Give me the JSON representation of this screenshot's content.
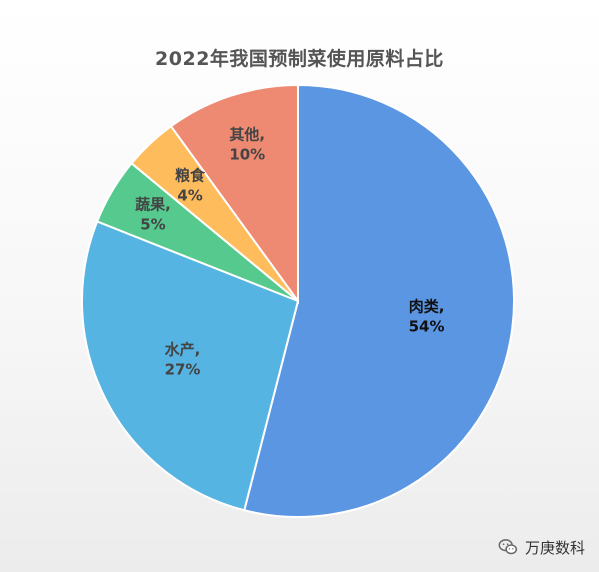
{
  "chart_data": {
    "type": "pie",
    "title": "2022年我国预制菜使用原料占比",
    "categories": [
      "肉类",
      "水产",
      "蔬果",
      "粮食",
      "其他"
    ],
    "values": [
      54,
      27,
      5,
      4,
      10
    ],
    "labels": [
      {
        "name": "肉类,",
        "pct": "54%"
      },
      {
        "name": "水产,",
        "pct": "27%"
      },
      {
        "name": "蔬果,",
        "pct": "5%"
      },
      {
        "name": "粮食",
        "pct": "4%"
      },
      {
        "name": "其他,",
        "pct": "10%"
      }
    ],
    "colors": [
      "#5B96E3",
      "#56B4E2",
      "#55C98E",
      "#FFBC5C",
      "#EE8A72"
    ],
    "label_colors": [
      "#111111",
      "#444444",
      "#444444",
      "#444444",
      "#444444"
    ],
    "start_angle_deg": 0,
    "direction": "clockwise",
    "legend": "none"
  },
  "watermark": {
    "text": "万庚数科",
    "icon": "wechat-icon"
  }
}
